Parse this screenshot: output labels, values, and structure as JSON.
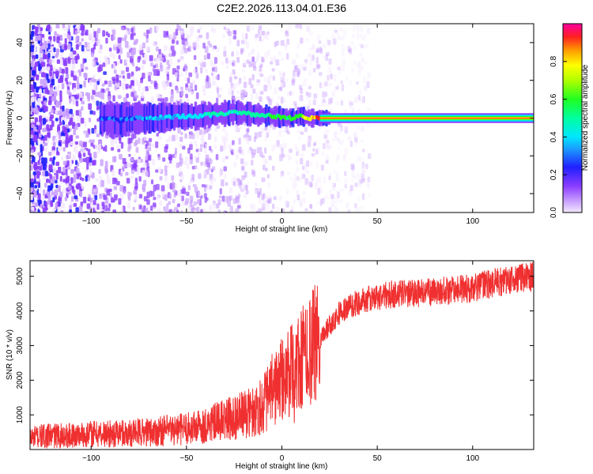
{
  "title": "C2E2.2026.113.04.01.E36",
  "chart_data": [
    {
      "type": "heatmap",
      "xlabel": "Height of straight line (km)",
      "ylabel": "Frequency (Hz)",
      "xlim": [
        -132,
        132
      ],
      "ylim": [
        -50,
        50
      ],
      "xticks": [
        -100,
        -50,
        0,
        50,
        100
      ],
      "yticks": [
        -40,
        -20,
        0,
        20,
        40
      ],
      "colorbar": {
        "label": "Normalized spectral amplitude",
        "range": [
          0,
          1
        ],
        "ticks": [
          0.0,
          0.2,
          0.4,
          0.6,
          0.8
        ],
        "tick_labels": [
          "0.0",
          "0.2",
          "0.4",
          "0.6",
          "0.8"
        ]
      },
      "features": {
        "noise_region_km": [
          -132,
          -10
        ],
        "doppler_trace": {
          "x": [
            -95,
            -85,
            -75,
            -65,
            -55,
            -45,
            -35,
            -25,
            -15,
            -5,
            5,
            10,
            15,
            20,
            132
          ],
          "freq": [
            0,
            -1,
            0,
            0,
            1,
            1,
            2,
            3,
            2,
            1,
            0,
            1,
            0,
            0,
            0
          ],
          "amplitude": [
            0.3,
            0.35,
            0.35,
            0.4,
            0.4,
            0.45,
            0.5,
            0.5,
            0.55,
            0.6,
            0.65,
            0.7,
            0.8,
            0.95,
            0.95
          ]
        }
      },
      "grid": false
    },
    {
      "type": "line",
      "xlabel": "Height of straight line (km)",
      "ylabel": "SNR (10 * v/v)",
      "xlim": [
        -132,
        132
      ],
      "ylim": [
        0,
        5450
      ],
      "xticks": [
        -100,
        -50,
        0,
        50,
        100
      ],
      "yticks": [
        1000,
        2000,
        3000,
        4000,
        5000
      ],
      "color": "#f03030",
      "series": [
        {
          "x": [
            -132,
            -120,
            -110,
            -100,
            -90,
            -80,
            -70,
            -60,
            -50,
            -40,
            -30,
            -20,
            -15,
            -10,
            -5,
            0,
            5,
            10,
            15,
            20,
            25,
            30,
            40,
            50,
            60,
            70,
            80,
            90,
            100,
            110,
            120,
            132
          ],
          "y": [
            350,
            400,
            400,
            450,
            450,
            480,
            500,
            550,
            600,
            700,
            850,
            1000,
            1100,
            1300,
            1700,
            2000,
            2250,
            2500,
            2800,
            3200,
            3600,
            3950,
            4250,
            4400,
            4500,
            4500,
            4550,
            4600,
            4650,
            4800,
            4900,
            5000
          ]
        }
      ],
      "grid": false
    }
  ],
  "colors": {
    "signal": "#f03030",
    "axis": "#000000",
    "background": "#ffffff"
  }
}
